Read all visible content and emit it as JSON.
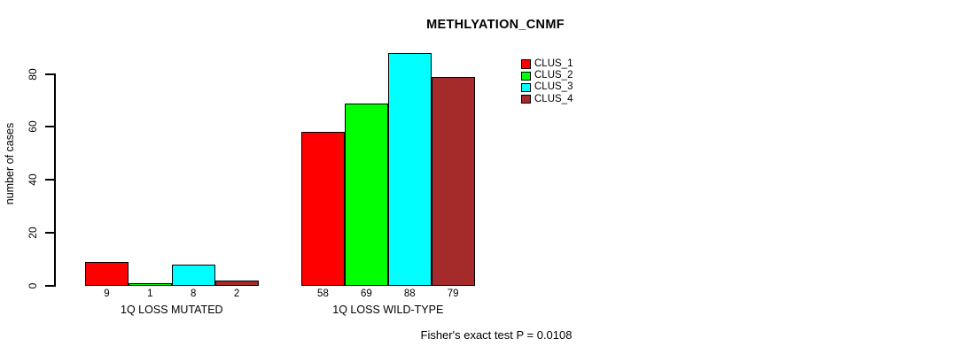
{
  "chart_data": {
    "type": "bar",
    "title": "METHLYATION_CNMF",
    "ylabel": "number of cases",
    "xlabel": "",
    "categories": [
      "1Q LOSS MUTATED",
      "1Q LOSS WILD-TYPE"
    ],
    "series": [
      {
        "name": "CLUS_1",
        "color": "#FF0000",
        "values": [
          9,
          58
        ]
      },
      {
        "name": "CLUS_2",
        "color": "#00FF00",
        "values": [
          1,
          69
        ]
      },
      {
        "name": "CLUS_3",
        "color": "#00FFFF",
        "values": [
          8,
          88
        ]
      },
      {
        "name": "CLUS_4",
        "color": "#A52A2A",
        "values": [
          2,
          79
        ]
      }
    ],
    "yticks": [
      0,
      20,
      40,
      60,
      80
    ],
    "ylim": [
      0,
      88
    ],
    "grid": false,
    "legend_position": "right-of-plot-top",
    "bar_border_color": "#000000",
    "annotation": "Fisher's exact test P = 0.0108"
  }
}
